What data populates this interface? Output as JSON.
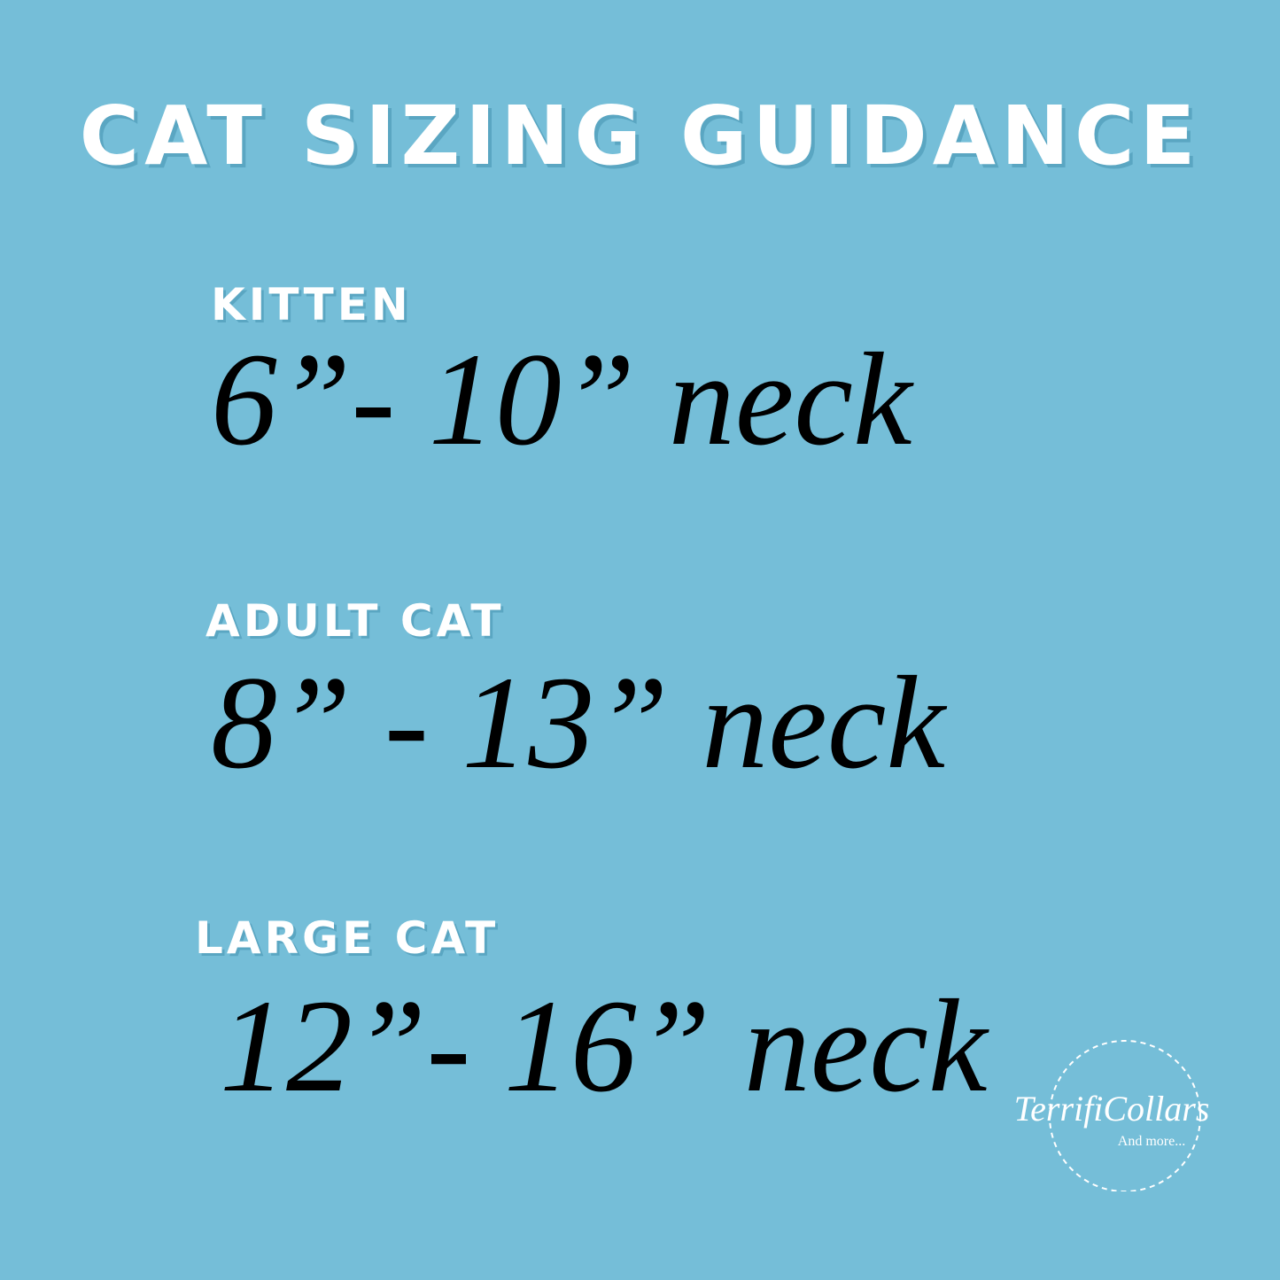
{
  "title": "CAT SIZING GUIDANCE",
  "sizes": [
    {
      "label": "KITTEN",
      "range": "6”- 10” neck"
    },
    {
      "label": "ADULT CAT",
      "range": "8” - 13” neck"
    },
    {
      "label": "LARGE CAT",
      "range": "12”- 16” neck"
    }
  ],
  "logo": {
    "name": "TerrifiCollars",
    "tagline": "And more..."
  }
}
